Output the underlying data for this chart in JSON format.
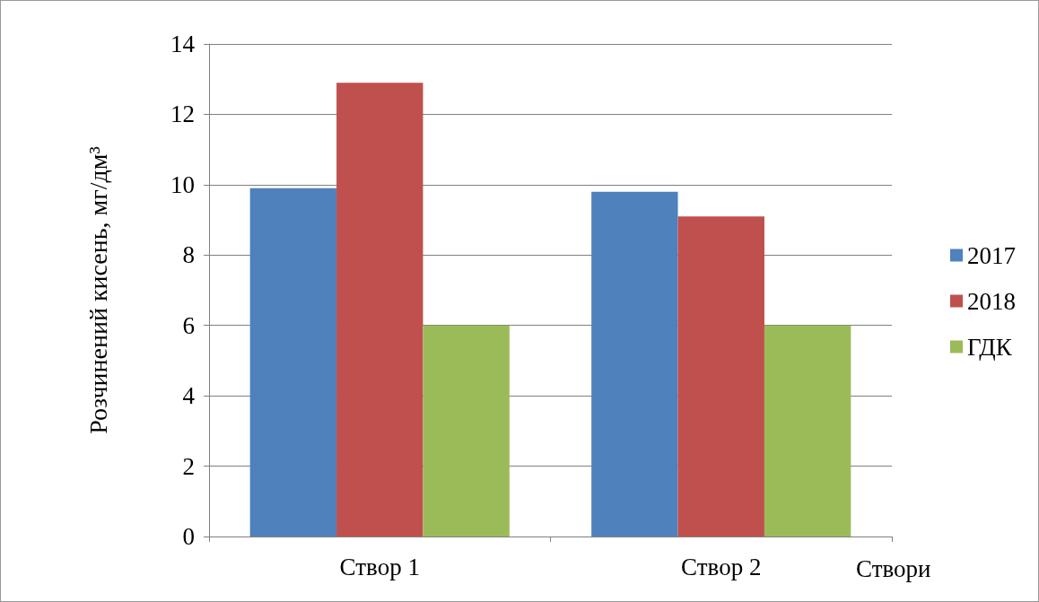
{
  "chart_data": {
    "type": "bar",
    "ylabel": "Розчинений кисень, мг/дм³",
    "xlabel": "Створи",
    "categories": [
      "Створ 1",
      "Створ 2"
    ],
    "series": [
      {
        "name": "2017",
        "color": "#4f81bd",
        "values": [
          9.9,
          9.8
        ]
      },
      {
        "name": "2018",
        "color": "#c0504d",
        "values": [
          12.9,
          9.1
        ]
      },
      {
        "name": "ГДК",
        "color": "#9bbb59",
        "values": [
          6,
          6
        ]
      }
    ],
    "ylim": [
      0,
      14
    ],
    "yticks": [
      0,
      2,
      4,
      6,
      8,
      10,
      12,
      14
    ],
    "grid": "y",
    "legend": "right"
  }
}
